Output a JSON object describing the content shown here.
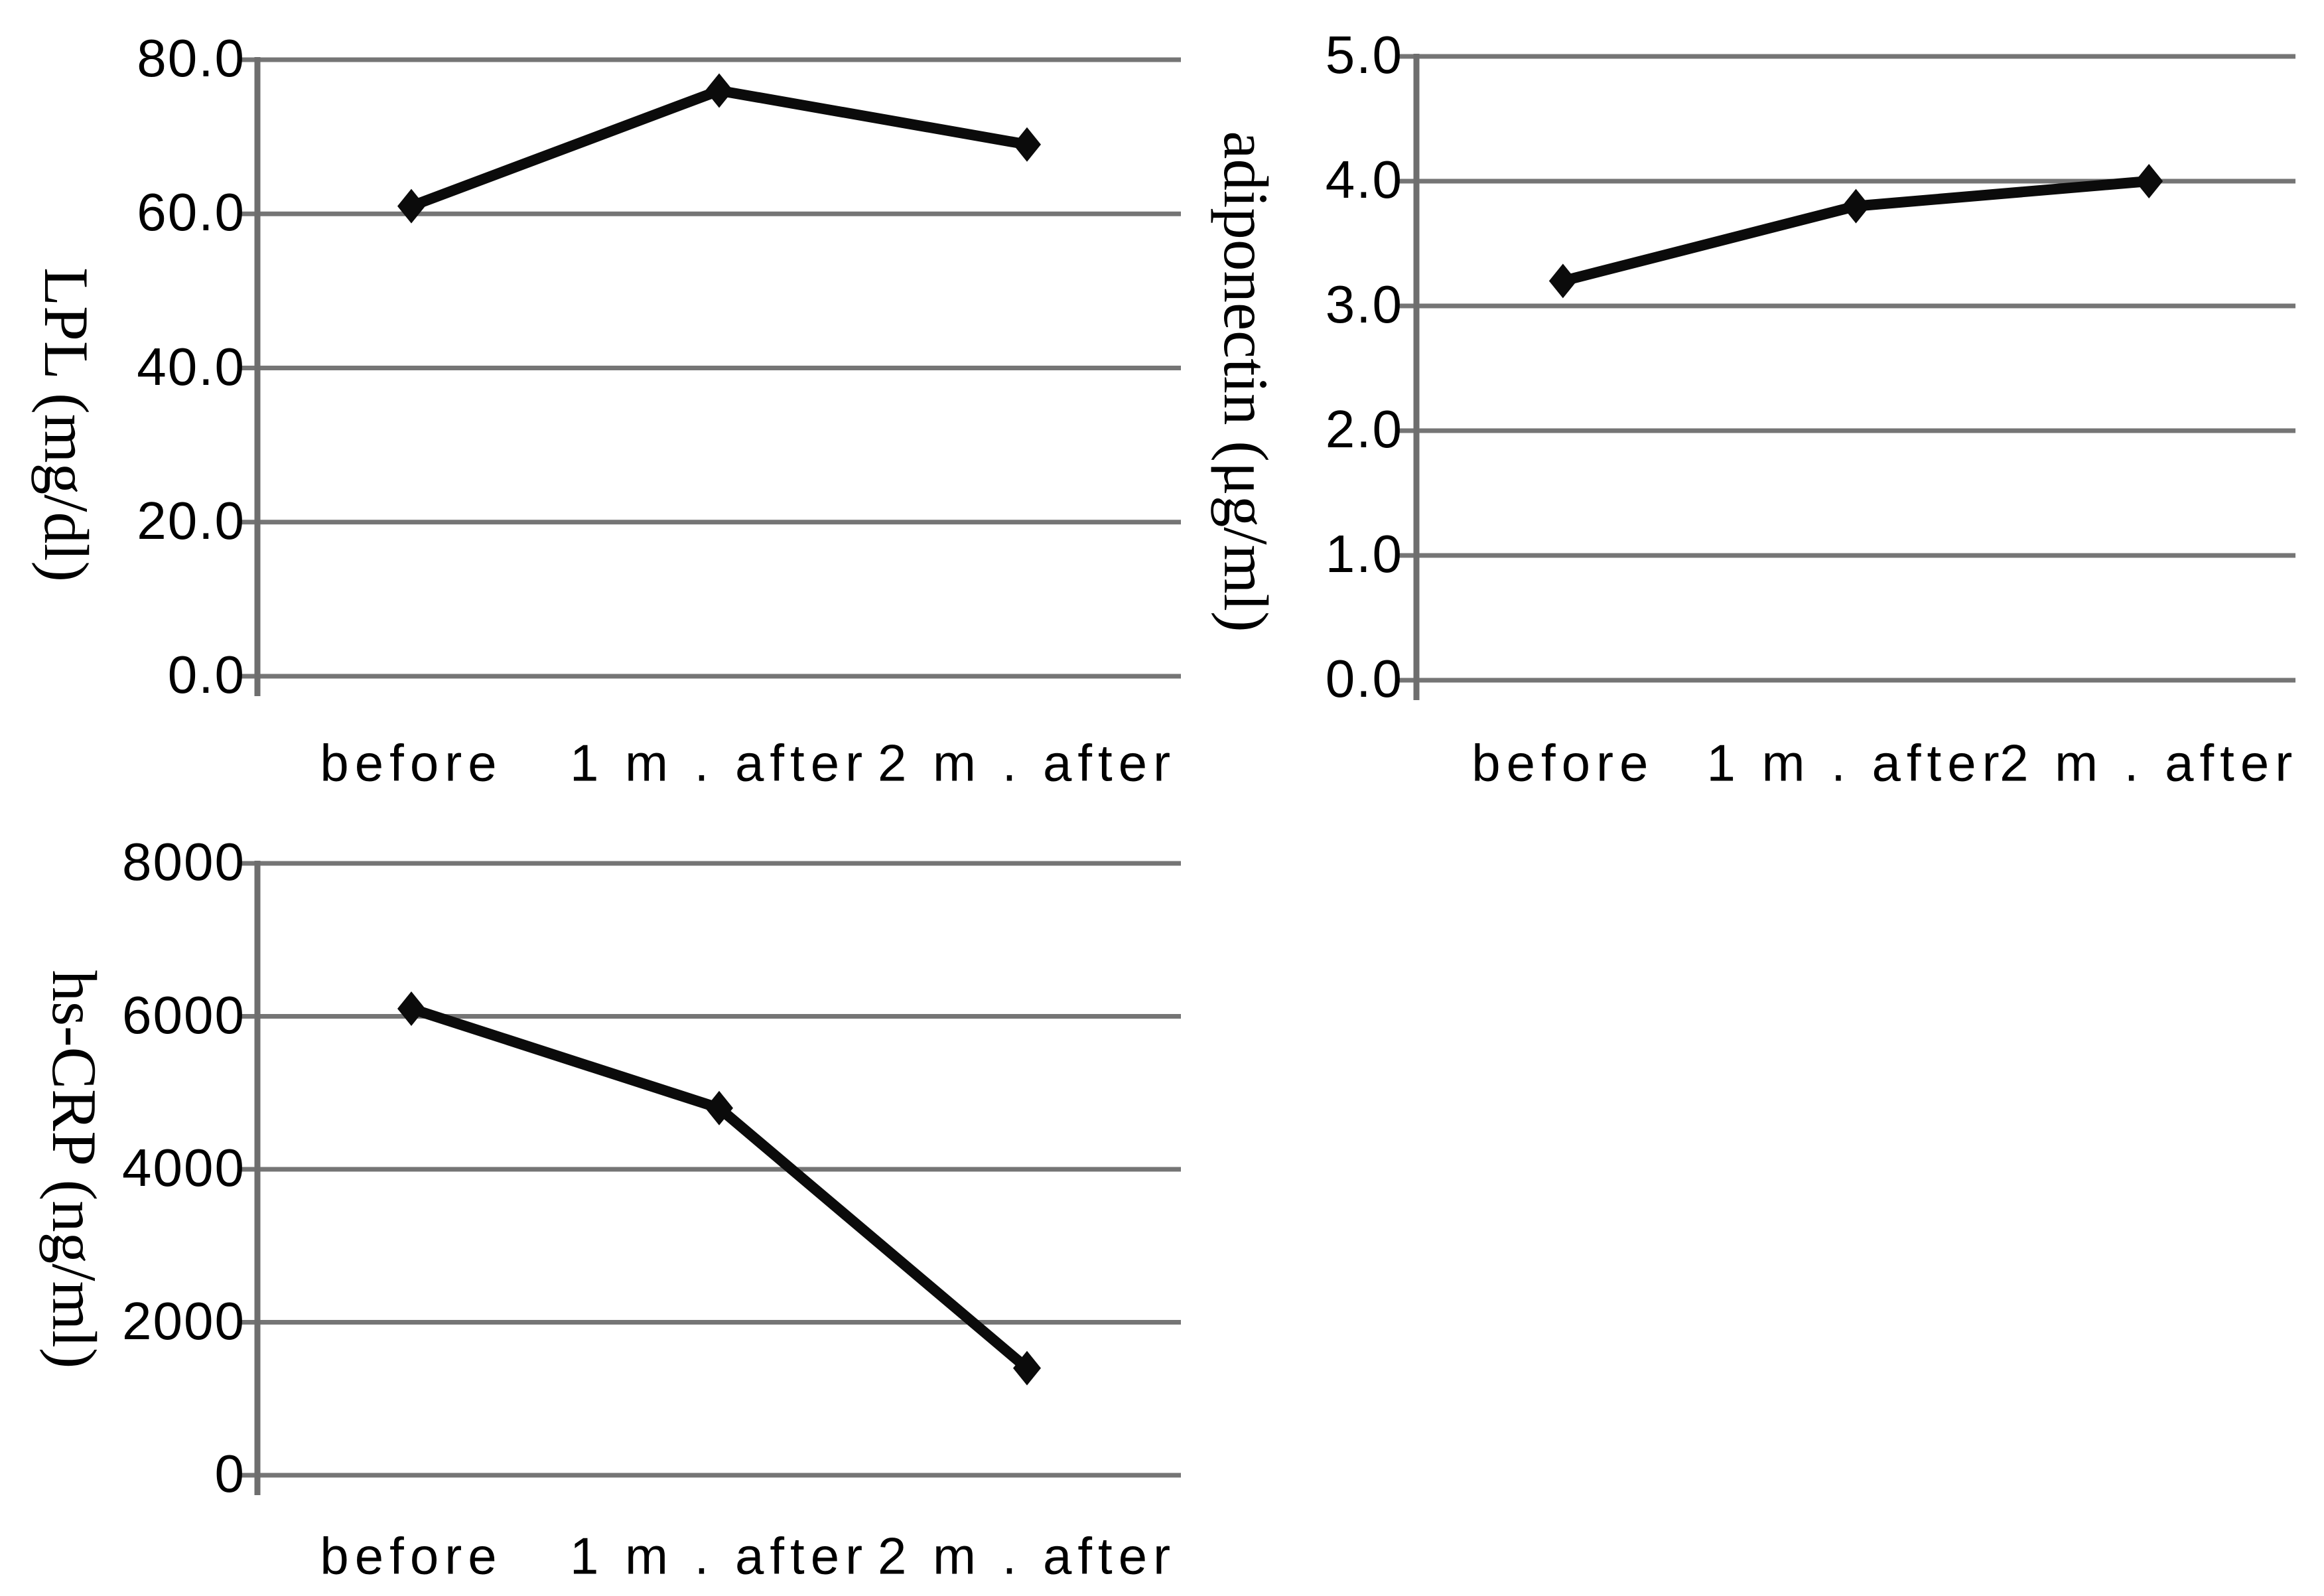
{
  "figure": {
    "background": "#ffffff",
    "gridline_color": "#757575",
    "axis_color": "#6e6e6e",
    "series_color": "#0b0b0b",
    "text_color": "#000000"
  },
  "chart_data": [
    {
      "type": "line",
      "ylabel": "LPL (mg/dl)",
      "categories": [
        "before",
        "1 m . after",
        "2 m . after"
      ],
      "values": [
        61,
        76,
        69
      ],
      "ylim": [
        0,
        80
      ],
      "ytick_labels": [
        "80.0",
        "60.0",
        "40.0",
        "20.0",
        "0.0"
      ],
      "grid": true,
      "marker": "diamond",
      "legend": "none"
    },
    {
      "type": "line",
      "ylabel": "adiponectin (μg/ml)",
      "categories": [
        "before",
        "1 m . after",
        "2 m . after"
      ],
      "values": [
        3.2,
        3.8,
        4.0
      ],
      "ylim": [
        0,
        5
      ],
      "ytick_labels": [
        "5.0",
        "4.0",
        "3.0",
        "2.0",
        "1.0",
        "0.0"
      ],
      "grid": true,
      "marker": "diamond",
      "legend": "none"
    },
    {
      "type": "line",
      "ylabel": "hs-CRP (ng/ml)",
      "categories": [
        "before",
        "1 m . after",
        "2 m . after"
      ],
      "values": [
        6100,
        4800,
        1400
      ],
      "ylim": [
        0,
        8000
      ],
      "ytick_labels": [
        "8000",
        "6000",
        "4000",
        "2000",
        "0"
      ],
      "grid": true,
      "marker": "diamond",
      "legend": "none"
    }
  ]
}
